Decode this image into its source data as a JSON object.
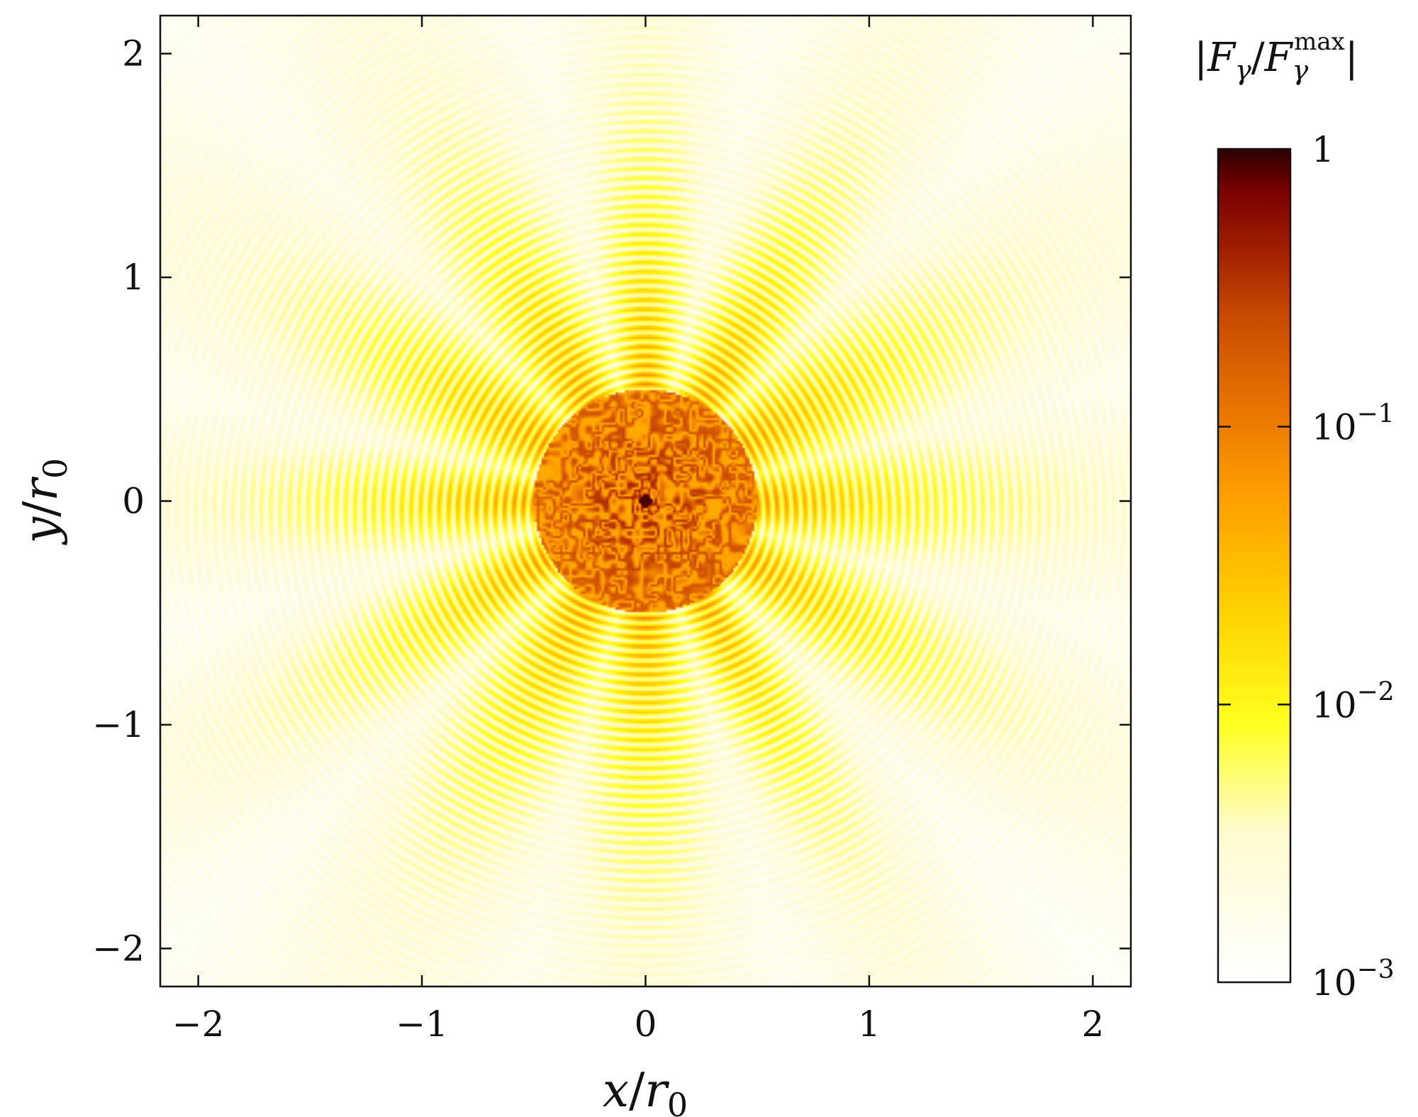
{
  "chart_data": {
    "type": "heatmap",
    "title": "",
    "xlabel": "x/r0",
    "ylabel": "y/r0",
    "xlim": [
      -2.17,
      2.17
    ],
    "ylim": [
      -2.17,
      2.17
    ],
    "x_ticks": [
      {
        "value": -2,
        "label": "−2"
      },
      {
        "value": -1,
        "label": "−1"
      },
      {
        "value": 0,
        "label": "0"
      },
      {
        "value": 1,
        "label": "1"
      },
      {
        "value": 2,
        "label": "2"
      }
    ],
    "y_ticks": [
      {
        "value": -2,
        "label": "−2"
      },
      {
        "value": -1,
        "label": "−1"
      },
      {
        "value": 0,
        "label": "0"
      },
      {
        "value": 1,
        "label": "1"
      },
      {
        "value": 2,
        "label": "2"
      }
    ],
    "grid": false,
    "colorbar": {
      "title": "|Fγ/Fγmax|",
      "scale": "log",
      "range": [
        0.001,
        1
      ],
      "ticks": [
        {
          "value": 1,
          "label": "1",
          "base": "",
          "exp": ""
        },
        {
          "value": 0.1,
          "label": "10−1",
          "base": "10",
          "exp": "−1"
        },
        {
          "value": 0.01,
          "label": "10−2",
          "base": "10",
          "exp": "−2"
        },
        {
          "value": 0.001,
          "label": "10−3",
          "base": "10",
          "exp": "−3"
        }
      ],
      "colormap": [
        "#ffffff",
        "#fffbd0",
        "#ffff20",
        "#ffd000",
        "#ffa000",
        "#e67000",
        "#c84a00",
        "#a01e00",
        "#7a0000",
        "#2a0000"
      ]
    },
    "field_description_values": {
      "lobe_angles_deg": [
        0,
        30,
        60,
        90,
        120,
        150,
        180,
        210,
        240,
        270,
        300,
        330
      ],
      "lobe_center_level": 0.05,
      "core_radius": 0.5,
      "core_level": 0.3,
      "peak_location": [
        0,
        0
      ]
    }
  }
}
